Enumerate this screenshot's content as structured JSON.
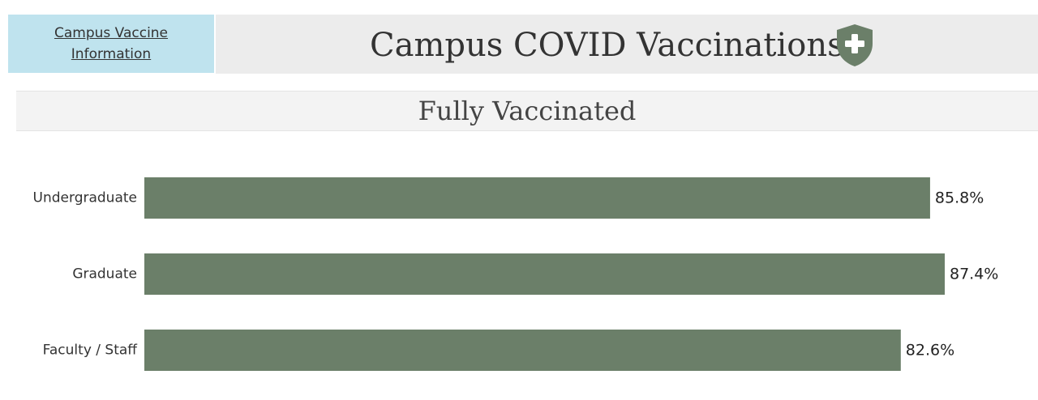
{
  "sidebar_link": {
    "line1": "Campus Vaccine",
    "line2": "Information"
  },
  "header": {
    "title": "Campus COVID Vaccinations",
    "icon": "shield-plus-icon"
  },
  "colors": {
    "bar": "#6b7f69",
    "link_box": "#bfe3ee",
    "header_bg": "#ececec",
    "shield": "#6b7f69"
  },
  "chart_data": {
    "type": "bar",
    "orientation": "horizontal",
    "title": "Fully Vaccinated",
    "categories": [
      "Undergraduate",
      "Graduate",
      "Faculty / Staff"
    ],
    "values": [
      85.8,
      87.4,
      82.6
    ],
    "value_labels": [
      "85.8%",
      "87.4%",
      "82.6%"
    ],
    "unit": "%",
    "xlim": [
      0,
      87.4
    ],
    "grid": false,
    "legend": "none"
  }
}
